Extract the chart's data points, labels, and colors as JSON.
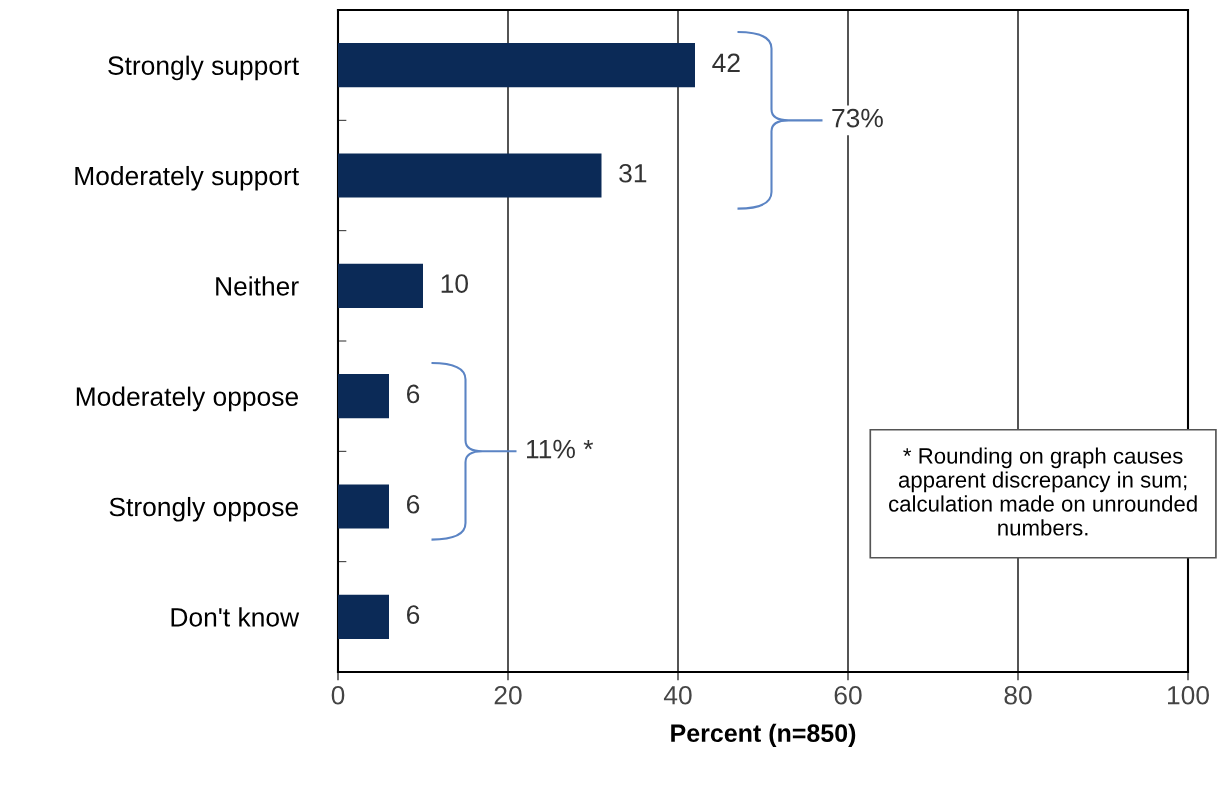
{
  "chart_data": {
    "type": "bar",
    "orientation": "horizontal",
    "categories": [
      "Strongly support",
      "Moderately support",
      "Neither",
      "Moderately oppose",
      "Strongly oppose",
      "Don't know"
    ],
    "values": [
      42,
      31,
      10,
      6,
      6,
      6
    ],
    "color": "#0b2a57",
    "data_labels": true,
    "xlabel": "Percent (n=850)",
    "xlim": [
      0,
      100
    ],
    "xticks": [
      0,
      20,
      40,
      60,
      80,
      100
    ],
    "grid": "x",
    "annotations": [
      "73%",
      "11% *",
      "* Rounding on graph causes apparent discrepancy in sum; calculation made on unrounded numbers."
    ]
  }
}
